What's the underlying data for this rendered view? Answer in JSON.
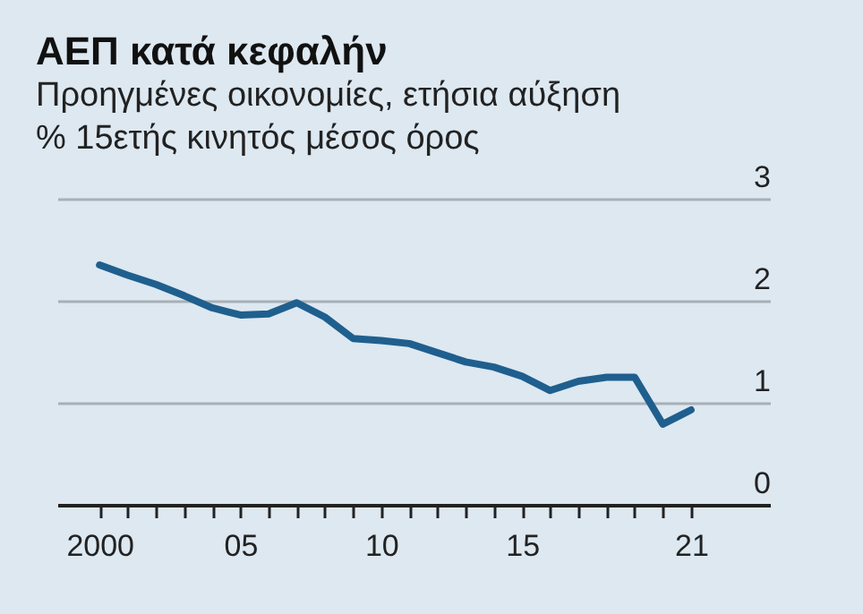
{
  "chart_data": {
    "type": "line",
    "title": "ΑΕΠ κατά κεφαλήν",
    "subtitle": "Προηγμένες οικονομίες, ετήσια αύξηση % 15ετής κινητός μέσος όρος",
    "x": [
      2000,
      2001,
      2002,
      2003,
      2004,
      2005,
      2006,
      2007,
      2008,
      2009,
      2010,
      2011,
      2012,
      2013,
      2014,
      2015,
      2016,
      2017,
      2018,
      2019,
      2020,
      2021
    ],
    "series": [
      {
        "color": "#1f5f8e",
        "values": [
          2.35,
          2.25,
          2.16,
          2.05,
          1.93,
          1.86,
          1.87,
          1.98,
          1.84,
          1.63,
          1.61,
          1.58,
          1.49,
          1.4,
          1.35,
          1.26,
          1.12,
          1.21,
          1.25,
          1.25,
          0.79,
          0.93
        ]
      }
    ],
    "xlim": [
      1998.5,
      2023.8
    ],
    "xticks": [
      {
        "value": 2000,
        "label": "2000"
      },
      {
        "value": 2001,
        "label": null
      },
      {
        "value": 2002,
        "label": null
      },
      {
        "value": 2003,
        "label": null
      },
      {
        "value": 2004,
        "label": null
      },
      {
        "value": 2005,
        "label": "05"
      },
      {
        "value": 2006,
        "label": null
      },
      {
        "value": 2007,
        "label": null
      },
      {
        "value": 2008,
        "label": null
      },
      {
        "value": 2009,
        "label": null
      },
      {
        "value": 2010,
        "label": "10"
      },
      {
        "value": 2011,
        "label": null
      },
      {
        "value": 2012,
        "label": null
      },
      {
        "value": 2013,
        "label": null
      },
      {
        "value": 2014,
        "label": null
      },
      {
        "value": 2015,
        "label": "15"
      },
      {
        "value": 2016,
        "label": null
      },
      {
        "value": 2017,
        "label": null
      },
      {
        "value": 2018,
        "label": null
      },
      {
        "value": 2019,
        "label": null
      },
      {
        "value": 2020,
        "label": null
      },
      {
        "value": 2021,
        "label": "21"
      }
    ],
    "ylim": [
      0,
      3
    ],
    "yticks": [
      0,
      1,
      2,
      3
    ],
    "grid": "y",
    "line_style": "solid"
  }
}
